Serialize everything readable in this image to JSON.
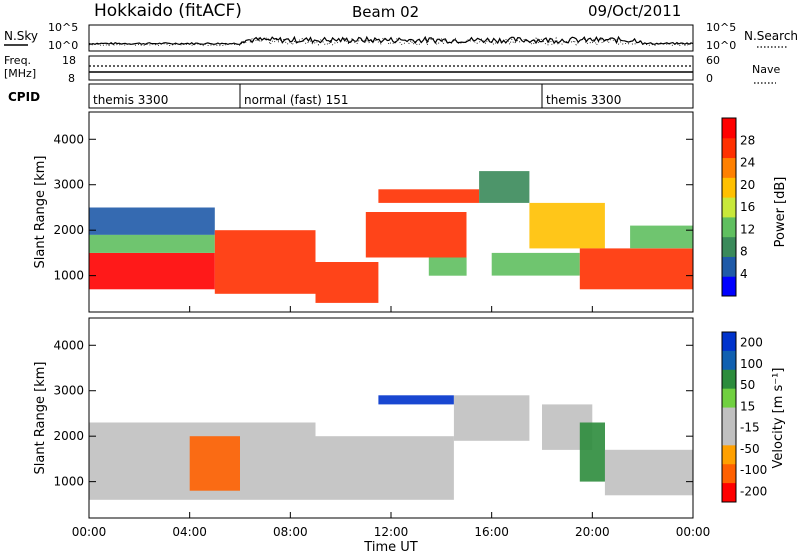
{
  "header": {
    "radar": "Hokkaido (fitACF)",
    "beam": "Beam 02",
    "date": "09/Oct/2011"
  },
  "noise_panel": {
    "left_label": "N.Sky",
    "right_label": "N.Search",
    "left_ticks": [
      "10^5",
      "10^0"
    ],
    "right_ticks": [
      "10^5",
      "10^0"
    ]
  },
  "freq_panel": {
    "label_line1": "Freq.",
    "label_line2": "[MHz]",
    "right_label": "Nave",
    "left_ticks": [
      "18",
      "8"
    ],
    "right_ticks": [
      "60",
      "0"
    ]
  },
  "cpid": {
    "label": "CPID",
    "segments": [
      {
        "label": "themis 3300",
        "start_hour": 0
      },
      {
        "label": "normal (fast) 151",
        "start_hour": 6
      },
      {
        "label": "themis 3300",
        "start_hour": 18
      }
    ]
  },
  "colors": {
    "power_scale": [
      "#0000ff",
      "#1f5aa8",
      "#3a8a5a",
      "#5fbf5f",
      "#c8e83a",
      "#ffc000",
      "#ff8000",
      "#ff3000",
      "#ff0000"
    ],
    "velocity_scale": [
      "#0033cc",
      "#1060b0",
      "#2c8c3c",
      "#70d040",
      "#c0c0c0",
      "#c0c0c0",
      "#ffa000",
      "#ff6000",
      "#ff0000"
    ]
  },
  "chart_data": [
    {
      "type": "heatmap",
      "title": "Power",
      "xlabel": "",
      "ylabel": "Slant Range [km]",
      "ylim": [
        200,
        4600
      ],
      "xlim_hours": [
        0,
        24
      ],
      "yticks": [
        1000,
        2000,
        3000,
        4000
      ],
      "colorbar": {
        "label": "Power [dB]",
        "ticks": [
          4,
          8,
          12,
          16,
          20,
          24,
          28
        ],
        "range": [
          0,
          32
        ]
      },
      "bands": [
        {
          "t0": 0,
          "t1": 5.0,
          "r0": 700,
          "r1": 1500,
          "level": 30
        },
        {
          "t0": 0,
          "t1": 5.0,
          "r0": 1500,
          "r1": 1900,
          "level": 13
        },
        {
          "t0": 0,
          "t1": 5.0,
          "r0": 1900,
          "r1": 2500,
          "level": 6
        },
        {
          "t0": 5.0,
          "t1": 9.0,
          "r0": 600,
          "r1": 2000,
          "level": 28
        },
        {
          "t0": 9.0,
          "t1": 11.5,
          "r0": 400,
          "r1": 1300,
          "level": 27
        },
        {
          "t0": 11.0,
          "t1": 15.0,
          "r0": 1400,
          "r1": 2400,
          "level": 26
        },
        {
          "t0": 11.5,
          "t1": 15.5,
          "r0": 2600,
          "r1": 2900,
          "level": 25
        },
        {
          "t0": 13.5,
          "t1": 15.0,
          "r0": 1000,
          "r1": 1400,
          "level": 12
        },
        {
          "t0": 15.5,
          "t1": 17.5,
          "r0": 2600,
          "r1": 3300,
          "level": 10
        },
        {
          "t0": 16.0,
          "t1": 19.5,
          "r0": 1000,
          "r1": 1500,
          "level": 12
        },
        {
          "t0": 17.5,
          "t1": 20.5,
          "r0": 1600,
          "r1": 2600,
          "level": 20
        },
        {
          "t0": 19.5,
          "t1": 24.0,
          "r0": 700,
          "r1": 1600,
          "level": 28
        },
        {
          "t0": 21.5,
          "t1": 24.0,
          "r0": 1600,
          "r1": 2100,
          "level": 12
        }
      ]
    },
    {
      "type": "heatmap",
      "title": "Velocity",
      "xlabel": "Time UT",
      "ylabel": "Slant Range [km]",
      "ylim": [
        200,
        4600
      ],
      "xlim_hours": [
        0,
        24
      ],
      "yticks": [
        1000,
        2000,
        3000,
        4000
      ],
      "xticks": [
        "00:00",
        "04:00",
        "08:00",
        "12:00",
        "16:00",
        "20:00",
        "00:00"
      ],
      "colorbar": {
        "label": "Velocity [m s⁻¹]",
        "ticks": [
          200,
          100,
          50,
          15,
          -15,
          -50,
          -100,
          -200
        ]
      },
      "bands": [
        {
          "t0": 0,
          "t1": 9.0,
          "r0": 600,
          "r1": 2300,
          "level": 0
        },
        {
          "t0": 4.0,
          "t1": 6.0,
          "r0": 800,
          "r1": 2000,
          "level": -60
        },
        {
          "t0": 9.0,
          "t1": 14.5,
          "r0": 600,
          "r1": 2000,
          "level": 0
        },
        {
          "t0": 11.5,
          "t1": 14.5,
          "r0": 2700,
          "r1": 2900,
          "level": 200
        },
        {
          "t0": 14.5,
          "t1": 17.5,
          "r0": 1900,
          "r1": 2900,
          "level": 0
        },
        {
          "t0": 18.0,
          "t1": 20.0,
          "r0": 1700,
          "r1": 2700,
          "level": 0
        },
        {
          "t0": 19.5,
          "t1": 20.5,
          "r0": 1000,
          "r1": 2300,
          "level": 40
        },
        {
          "t0": 20.5,
          "t1": 24.0,
          "r0": 700,
          "r1": 1700,
          "level": 0
        }
      ]
    }
  ]
}
